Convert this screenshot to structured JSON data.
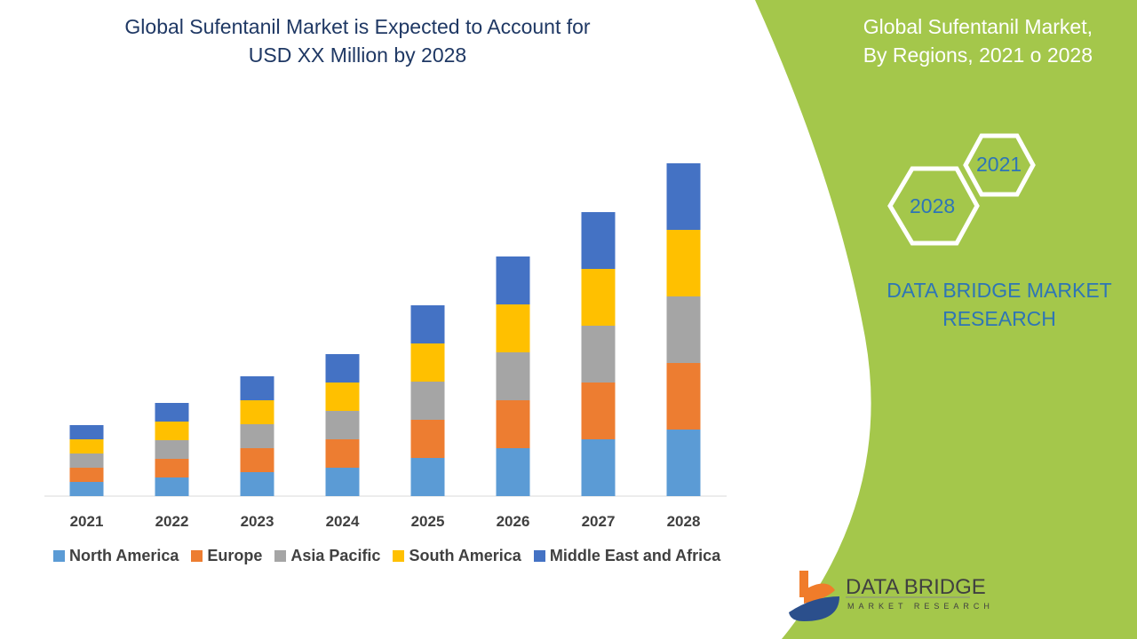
{
  "header": {
    "title_line1": "Global Sufentanil Market is Expected to Account for",
    "title_line2": "USD XX Million by 2028"
  },
  "side_panel": {
    "title_line1": "Global Sufentanil Market,",
    "title_line2": "By Regions, 2021 o 2028",
    "hex_years": [
      "2021",
      "2028"
    ],
    "brand_line1": "DATA BRIDGE MARKET",
    "brand_line2": "RESEARCH",
    "color": "#a4c74b"
  },
  "logo": {
    "name": "DATA BRIDGE",
    "tagline": "MARKET RESEARCH"
  },
  "chart_data": {
    "type": "bar",
    "stacked": true,
    "title": "Global Sufentanil Market is Expected to Account for USD XX Million by 2028",
    "categories": [
      "2021",
      "2022",
      "2023",
      "2024",
      "2025",
      "2026",
      "2027",
      "2028"
    ],
    "series": [
      {
        "name": "North America",
        "color": "#5b9bd5",
        "values": [
          16,
          21,
          27,
          32,
          43,
          54,
          64,
          75
        ]
      },
      {
        "name": "Europe",
        "color": "#ed7d31",
        "values": [
          16,
          21,
          27,
          32,
          43,
          54,
          64,
          75
        ]
      },
      {
        "name": "Asia Pacific",
        "color": "#a5a5a5",
        "values": [
          16,
          21,
          27,
          32,
          43,
          54,
          64,
          75
        ]
      },
      {
        "name": "South America",
        "color": "#ffc000",
        "values": [
          16,
          21,
          27,
          32,
          43,
          54,
          64,
          75
        ]
      },
      {
        "name": "Middle East and Africa",
        "color": "#4472c4",
        "values": [
          16,
          21,
          27,
          32,
          43,
          54,
          64,
          75
        ]
      }
    ],
    "ylim": [
      0,
      400
    ],
    "y_axis_visible": false,
    "grid": false,
    "legend": "bottom"
  }
}
